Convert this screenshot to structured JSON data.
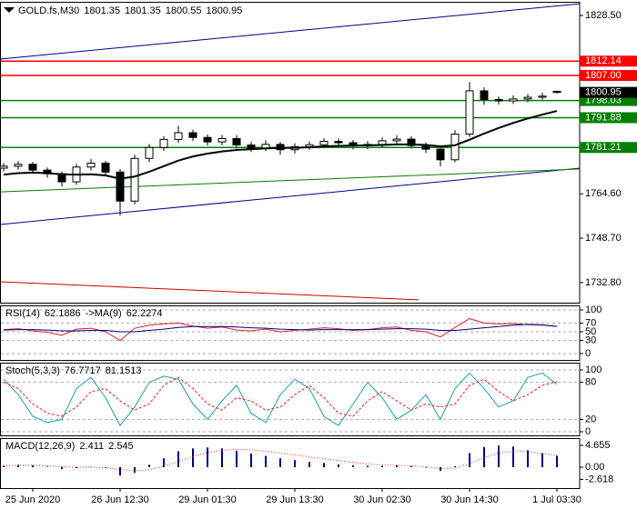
{
  "chart_data": [
    {
      "type": "candlestick",
      "title": "GOLD.fs,M30",
      "categories": [
        null,
        null,
        "25 Jun 2020",
        null,
        null,
        null,
        null,
        null,
        "26 Jun 12:30",
        null,
        null,
        null,
        null,
        null,
        "29 Jun 01:30",
        null,
        null,
        null,
        null,
        null,
        "29 Jun 13:30",
        null,
        null,
        null,
        null,
        null,
        "30 Jun 02:30",
        null,
        null,
        null,
        null,
        null,
        "30 Jun 14:30",
        null,
        null,
        null,
        null,
        null,
        "1 Jul 03:30"
      ],
      "open": [
        1773.8,
        1774.5,
        1775.2,
        1773.1,
        1771.8,
        1768.9,
        1774.2,
        1775.6,
        1772.4,
        1762.0,
        1777.3,
        1781.2,
        1784.1,
        1786.5,
        1784.8,
        1783.2,
        1784.4,
        1782.1,
        1781.0,
        1782.3,
        1780.4,
        1781.5,
        1782.2,
        1783.4,
        1782.9,
        1781.8,
        1782.3,
        1783.6,
        1784.2,
        1781.9,
        1780.6,
        1776.8,
        1786.0,
        1801.5,
        1798.4,
        1797.9,
        1798.6,
        1799.2,
        1801.35
      ],
      "high": [
        1775.6,
        1776.3,
        1776.0,
        1774.0,
        1772.6,
        1775.3,
        1777.0,
        1776.4,
        1773.5,
        1778.6,
        1782.5,
        1785.3,
        1789.0,
        1787.6,
        1785.9,
        1785.7,
        1785.6,
        1783.3,
        1783.8,
        1783.2,
        1782.7,
        1783.4,
        1784.6,
        1784.5,
        1783.9,
        1783.5,
        1784.8,
        1785.6,
        1785.3,
        1783.0,
        1781.8,
        1787.4,
        1804.6,
        1802.8,
        1799.5,
        1799.9,
        1800.4,
        1800.8,
        1801.35
      ],
      "low": [
        1772.6,
        1773.3,
        1771.9,
        1770.4,
        1767.2,
        1767.8,
        1773.0,
        1771.1,
        1756.8,
        1760.8,
        1776.0,
        1780.0,
        1782.9,
        1783.5,
        1781.9,
        1782.0,
        1780.8,
        1779.6,
        1779.9,
        1778.6,
        1779.1,
        1780.3,
        1781.0,
        1781.7,
        1780.5,
        1780.6,
        1781.2,
        1782.5,
        1780.8,
        1779.2,
        1774.4,
        1775.9,
        1785.0,
        1796.5,
        1796.6,
        1796.8,
        1797.4,
        1798.3,
        1800.55
      ],
      "close": [
        1774.5,
        1775.2,
        1773.1,
        1771.8,
        1768.9,
        1774.2,
        1775.6,
        1772.4,
        1762.0,
        1777.3,
        1781.2,
        1784.1,
        1786.5,
        1784.8,
        1783.2,
        1784.4,
        1782.1,
        1781.0,
        1782.3,
        1780.4,
        1781.5,
        1782.2,
        1783.4,
        1782.9,
        1781.8,
        1782.3,
        1783.6,
        1784.2,
        1781.9,
        1780.6,
        1776.8,
        1786.0,
        1801.5,
        1798.4,
        1797.9,
        1798.6,
        1799.2,
        1799.6,
        1800.95
      ],
      "series": [
        {
          "color": "#000000",
          "values": [
            1771.5,
            1772.0,
            1772.2,
            1772.0,
            1771.6,
            1771.5,
            1771.6,
            1771.2,
            1770.0,
            1770.8,
            1772.5,
            1774.5,
            1776.5,
            1778.0,
            1779.0,
            1779.8,
            1780.3,
            1780.6,
            1780.9,
            1781.0,
            1781.1,
            1781.3,
            1781.6,
            1781.8,
            1781.9,
            1782.0,
            1782.1,
            1782.3,
            1782.3,
            1782.1,
            1781.6,
            1782.0,
            1784.0,
            1786.2,
            1788.2,
            1790.0,
            1791.6,
            1793.0,
            1794.3
          ]
        }
      ],
      "trend_lines": [
        {
          "color": "#00008b",
          "x": [
            -0.25,
            39.55
          ],
          "values": [
            1812.9,
            1832.7
          ]
        },
        {
          "color": "#00008b",
          "x": [
            -0.25,
            39.55
          ],
          "values": [
            1753.6,
            1773.8
          ]
        },
        {
          "color": "#008000",
          "x": [
            -0.25,
            39.55
          ],
          "values": [
            1765.3,
            1773.5
          ]
        },
        {
          "color": "#cc0000",
          "x": [
            -0.25,
            28.5
          ],
          "values": [
            1733.1,
            1726.6
          ]
        }
      ],
      "levels": [
        {
          "value": 1812.14,
          "color": "#ff0000"
        },
        {
          "value": 1807,
          "label": "1807.00",
          "color": "#ff0000"
        },
        {
          "value": 1798.03,
          "color": "#008000"
        },
        {
          "value": 1791.88,
          "color": "#008000"
        },
        {
          "value": 1781.21,
          "color": "#008000"
        }
      ],
      "ylim": [
        1725.6,
        1833.4
      ],
      "yticks": [
        {
          "value": 1828.5,
          "label": "1828.50"
        },
        {
          "value": 1764.6,
          "label": "1764.60"
        },
        {
          "value": 1748.7,
          "label": "1748.70"
        },
        {
          "value": 1732.8,
          "label": "1732.80"
        }
      ],
      "grid": false
    },
    {
      "type": "line",
      "series": [
        {
          "name": "RSI(14)",
          "color": "#e02020",
          "style": "solid",
          "values": [
            55,
            57,
            52,
            49,
            42,
            56,
            58,
            50,
            30,
            58,
            65,
            68,
            70,
            63,
            58,
            61,
            54,
            52,
            56,
            50,
            53,
            56,
            59,
            57,
            53,
            55,
            59,
            61,
            53,
            50,
            38,
            60,
            80,
            70,
            68,
            69,
            66,
            65,
            62.1886
          ]
        },
        {
          "name": "->MA(9)",
          "color": "#000080",
          "style": "solid",
          "values": [
            54,
            55,
            55,
            54,
            52,
            52,
            53,
            53,
            50,
            50,
            53,
            56,
            60,
            62,
            62,
            62,
            61,
            59,
            58,
            56,
            55,
            54,
            55,
            55,
            55,
            55,
            56,
            57,
            57,
            56,
            53,
            53,
            56,
            59,
            62,
            65,
            67,
            66,
            62.2274
          ]
        }
      ],
      "ylim": [
        -14.6,
        110.4
      ],
      "yticks": [
        100,
        70,
        50,
        30,
        0
      ],
      "grid": true
    },
    {
      "type": "line",
      "series": [
        {
          "name": "Stoch(5,3,3)",
          "color": "#20a0a0",
          "style": "solid",
          "values": [
            85,
            60,
            25,
            15,
            20,
            70,
            88,
            55,
            10,
            40,
            80,
            90,
            85,
            45,
            20,
            50,
            75,
            30,
            15,
            60,
            85,
            70,
            25,
            10,
            45,
            80,
            55,
            20,
            35,
            60,
            20,
            70,
            95,
            70,
            40,
            50,
            88,
            95,
            76.7717
          ]
        },
        {
          "color": "#e02020",
          "style": "dashed",
          "values": [
            80,
            70,
            45,
            30,
            25,
            40,
            65,
            70,
            50,
            35,
            45,
            75,
            88,
            70,
            45,
            35,
            55,
            50,
            35,
            40,
            60,
            75,
            55,
            30,
            25,
            50,
            65,
            50,
            35,
            45,
            40,
            45,
            75,
            85,
            65,
            50,
            60,
            75,
            81.1513
          ]
        }
      ],
      "ylim": [
        -5.9,
        111.8
      ],
      "yticks": [
        100,
        80,
        20,
        0
      ],
      "grid": true
    },
    {
      "type": "bar",
      "series": [
        {
          "name": "MACD(12,26,9)",
          "type": "bar",
          "color": "#000080",
          "values": [
            0.3,
            0.5,
            0.4,
            0.1,
            -0.4,
            -0.2,
            0.1,
            -0.2,
            -1.8,
            -1.2,
            0.5,
            1.9,
            3.4,
            4.0,
            4.2,
            4.0,
            3.5,
            2.9,
            2.4,
            1.9,
            1.5,
            1.1,
            0.9,
            0.6,
            0.4,
            0.3,
            0.3,
            0.4,
            0.2,
            -0.1,
            -0.8,
            0.2,
            3.0,
            4.3,
            4.6,
            4.4,
            3.6,
            3.0,
            2.411
          ]
        },
        {
          "type": "line",
          "color": "#e02020",
          "style": "dotted",
          "values": [
            0.3,
            0.4,
            0.4,
            0.3,
            0.1,
            0,
            0,
            -0.1,
            -0.5,
            -0.8,
            -0.5,
            0.2,
            1.2,
            2.3,
            3.1,
            3.6,
            3.8,
            3.7,
            3.4,
            3.0,
            2.6,
            2.2,
            1.8,
            1.4,
            1.0,
            0.7,
            0.5,
            0.4,
            0.3,
            0.1,
            -0.3,
            -0.2,
            0.8,
            2.0,
            3.0,
            3.5,
            3.3,
            2.9,
            2.545
          ]
        }
      ],
      "ylim": [
        -4.46,
        6.2
      ],
      "yticks": [
        4.655,
        {
          "value": 0,
          "label": "0.00"
        },
        -2.618
      ],
      "grid": false
    }
  ]
}
